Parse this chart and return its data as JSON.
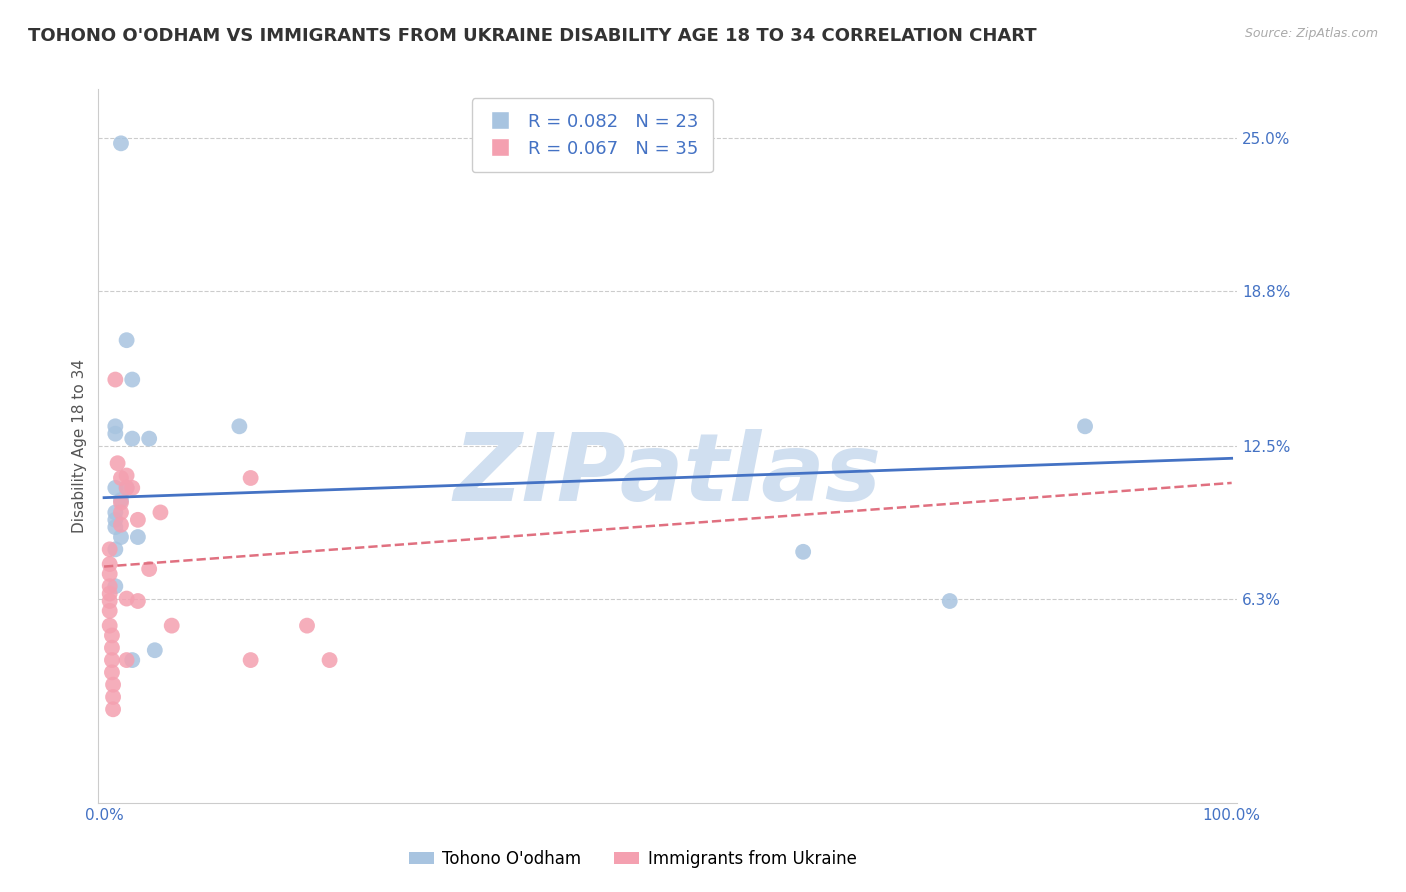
{
  "title": "TOHONO O'ODHAM VS IMMIGRANTS FROM UKRAINE DISABILITY AGE 18 TO 34 CORRELATION CHART",
  "source": "Source: ZipAtlas.com",
  "ylabel": "Disability Age 18 to 34",
  "xlabel": "",
  "xlim": [
    0.0,
    1.0
  ],
  "ylim": [
    -0.02,
    0.27
  ],
  "yticks": [
    0.063,
    0.125,
    0.188,
    0.25
  ],
  "ytick_labels": [
    "6.3%",
    "12.5%",
    "18.8%",
    "25.0%"
  ],
  "xticks": [
    0.0,
    0.2,
    0.4,
    0.6,
    0.8,
    1.0
  ],
  "xtick_labels": [
    "0.0%",
    "",
    "",
    "",
    "",
    "100.0%"
  ],
  "blue_R": 0.082,
  "blue_N": 23,
  "pink_R": 0.067,
  "pink_N": 35,
  "blue_color": "#a8c4e0",
  "pink_color": "#f4a0b0",
  "blue_line_color": "#4472c4",
  "pink_line_color": "#e07080",
  "watermark": "ZIPatlas",
  "watermark_color": "#d0dff0",
  "legend_label_blue": "Tohono O'odham",
  "legend_label_pink": "Immigrants from Ukraine",
  "blue_scatter_x": [
    0.015,
    0.02,
    0.025,
    0.01,
    0.01,
    0.01,
    0.015,
    0.01,
    0.01,
    0.01,
    0.015,
    0.01,
    0.01,
    0.025,
    0.02,
    0.03,
    0.045,
    0.04,
    0.12,
    0.62,
    0.75,
    0.87,
    0.025
  ],
  "blue_scatter_y": [
    0.248,
    0.168,
    0.152,
    0.133,
    0.13,
    0.108,
    0.103,
    0.098,
    0.095,
    0.092,
    0.088,
    0.083,
    0.068,
    0.128,
    0.108,
    0.088,
    0.042,
    0.128,
    0.133,
    0.082,
    0.062,
    0.133,
    0.038
  ],
  "pink_scatter_x": [
    0.005,
    0.005,
    0.005,
    0.005,
    0.005,
    0.005,
    0.005,
    0.005,
    0.007,
    0.007,
    0.007,
    0.007,
    0.008,
    0.008,
    0.008,
    0.01,
    0.012,
    0.015,
    0.015,
    0.015,
    0.015,
    0.02,
    0.02,
    0.02,
    0.02,
    0.025,
    0.03,
    0.03,
    0.04,
    0.05,
    0.06,
    0.13,
    0.13,
    0.18,
    0.2
  ],
  "pink_scatter_y": [
    0.083,
    0.077,
    0.073,
    0.068,
    0.065,
    0.062,
    0.058,
    0.052,
    0.048,
    0.043,
    0.038,
    0.033,
    0.028,
    0.023,
    0.018,
    0.152,
    0.118,
    0.112,
    0.102,
    0.098,
    0.093,
    0.113,
    0.108,
    0.063,
    0.038,
    0.108,
    0.095,
    0.062,
    0.075,
    0.098,
    0.052,
    0.038,
    0.112,
    0.052,
    0.038
  ],
  "blue_trend_x0": 0.0,
  "blue_trend_x1": 1.0,
  "blue_trend_y0": 0.104,
  "blue_trend_y1": 0.12,
  "pink_trend_x0": 0.0,
  "pink_trend_x1": 1.0,
  "pink_trend_y0": 0.076,
  "pink_trend_y1": 0.11,
  "grid_color": "#cccccc",
  "background_color": "#ffffff",
  "title_fontsize": 13,
  "axis_label_fontsize": 11,
  "tick_fontsize": 11,
  "legend_fontsize": 13
}
